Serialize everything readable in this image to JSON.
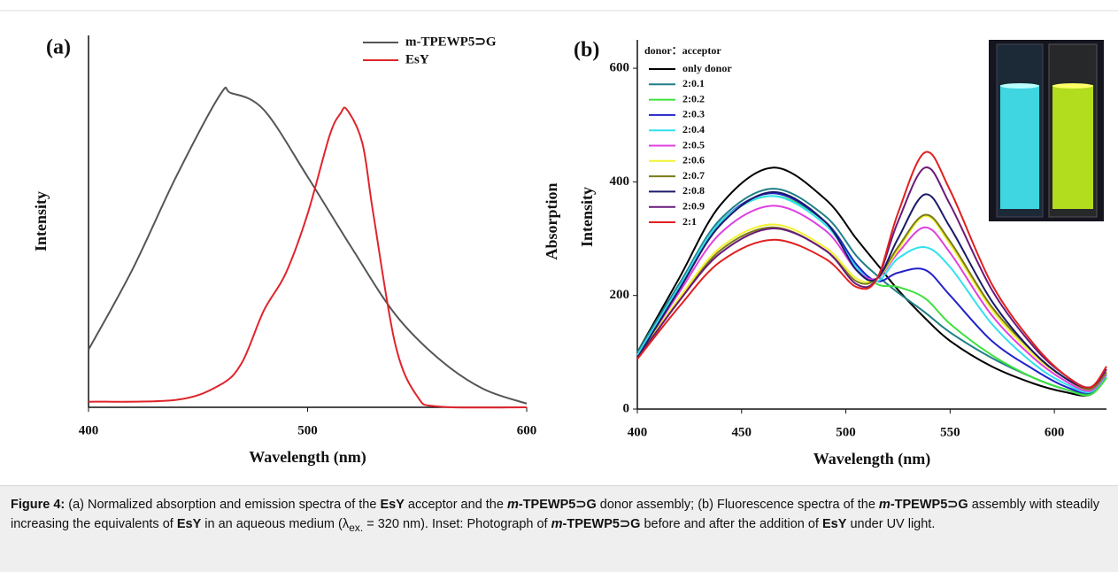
{
  "chart_data": [
    {
      "type": "line",
      "title": "(a)",
      "x_label": "Wavelength (nm)",
      "y_label": "Intensity",
      "xlim": [
        400,
        600
      ],
      "ylim": [
        0,
        1
      ],
      "xticks": [
        400,
        500,
        600
      ],
      "series": [
        {
          "name": "m-TPEWP5⊃G",
          "color": "#555555",
          "x": [
            400,
            420,
            440,
            460,
            465,
            480,
            500,
            520,
            540,
            560,
            580,
            600
          ],
          "values": [
            0.155,
            0.37,
            0.62,
            0.84,
            0.845,
            0.8,
            0.62,
            0.43,
            0.25,
            0.13,
            0.05,
            0.01
          ]
        },
        {
          "name": "EsY",
          "color": "#e0242b",
          "x": [
            400,
            440,
            460,
            470,
            480,
            490,
            500,
            510,
            515,
            518,
            525,
            530,
            540,
            550,
            560,
            600
          ],
          "values": [
            0.015,
            0.02,
            0.06,
            0.12,
            0.26,
            0.36,
            0.52,
            0.73,
            0.79,
            0.8,
            0.71,
            0.52,
            0.17,
            0.03,
            0.002,
            0
          ]
        }
      ]
    },
    {
      "type": "line",
      "title": "(b)",
      "x_label": "Wavelength (nm)",
      "y_label": "Intensity",
      "y_label_2": "Absorption",
      "legend_title": "donor：acceptor",
      "xlim": [
        400,
        625
      ],
      "ylim": [
        0,
        650
      ],
      "xticks": [
        400,
        450,
        500,
        550,
        600
      ],
      "yticks": [
        0,
        200,
        400,
        600
      ],
      "x": [
        400,
        420,
        440,
        465,
        490,
        505,
        515,
        525,
        538,
        550,
        570,
        590,
        605,
        617,
        625
      ],
      "series": [
        {
          "name": "only donor",
          "color": "#000000",
          "values": [
            100,
            230,
            360,
            425,
            370,
            300,
            255,
            210,
            160,
            120,
            75,
            45,
            30,
            25,
            55
          ]
        },
        {
          "name": "2:0.1",
          "color": "#1f7f86",
          "values": [
            100,
            220,
            335,
            388,
            340,
            270,
            235,
            205,
            170,
            135,
            90,
            55,
            35,
            28,
            55
          ]
        },
        {
          "name": "2:0.2",
          "color": "#3ee03e",
          "values": [
            95,
            215,
            330,
            375,
            330,
            255,
            220,
            215,
            195,
            150,
            95,
            55,
            35,
            25,
            55
          ]
        },
        {
          "name": "2:0.3",
          "color": "#2222cc",
          "values": [
            95,
            215,
            330,
            380,
            330,
            255,
            225,
            240,
            245,
            200,
            120,
            70,
            40,
            30,
            60
          ]
        },
        {
          "name": "2:0.4",
          "color": "#33e0f0",
          "values": [
            95,
            215,
            330,
            375,
            325,
            250,
            225,
            265,
            285,
            250,
            150,
            80,
            45,
            30,
            60
          ]
        },
        {
          "name": "2:0.5",
          "color": "#e040e0",
          "values": [
            90,
            205,
            310,
            358,
            315,
            245,
            230,
            275,
            320,
            275,
            165,
            90,
            50,
            32,
            62
          ]
        },
        {
          "name": "2:0.6",
          "color": "#f2f230",
          "values": [
            90,
            195,
            285,
            325,
            285,
            230,
            230,
            280,
            340,
            290,
            175,
            95,
            55,
            35,
            65
          ]
        },
        {
          "name": "2:0.7",
          "color": "#7a7a1a",
          "values": [
            90,
            190,
            280,
            320,
            280,
            225,
            230,
            285,
            342,
            295,
            180,
            100,
            55,
            35,
            65
          ]
        },
        {
          "name": "2:0.8",
          "color": "#1a1a6a",
          "values": [
            90,
            210,
            325,
            382,
            330,
            245,
            230,
            300,
            378,
            320,
            190,
            100,
            55,
            38,
            70
          ]
        },
        {
          "name": "2:0.9",
          "color": "#6a1a7a",
          "values": [
            88,
            190,
            275,
            318,
            280,
            220,
            230,
            330,
            425,
            360,
            210,
            110,
            60,
            38,
            70
          ]
        },
        {
          "name": "2:1",
          "color": "#e02020",
          "values": [
            88,
            180,
            260,
            298,
            265,
            215,
            230,
            345,
            452,
            385,
            220,
            115,
            60,
            38,
            75
          ]
        }
      ]
    }
  ],
  "caption": {
    "label": "Figure 4:",
    "parts": [
      "(a) Normalized absorption and emission spectra of the ",
      "EsY",
      " acceptor and the ",
      "m",
      "-TPEWP5⊃G",
      " donor assembly; (b) Fluorescence spectra of the ",
      "m",
      "-TPEWP5⊃G",
      " assembly with steadily increasing the equivalents of ",
      "EsY",
      " in an aqueous medium (λ",
      "ex.",
      " = 320 nm). Inset: Photograph of ",
      "m",
      "-TPEWP5⊃G",
      " before and after the addition of ",
      "EsY",
      " under UV light."
    ]
  }
}
